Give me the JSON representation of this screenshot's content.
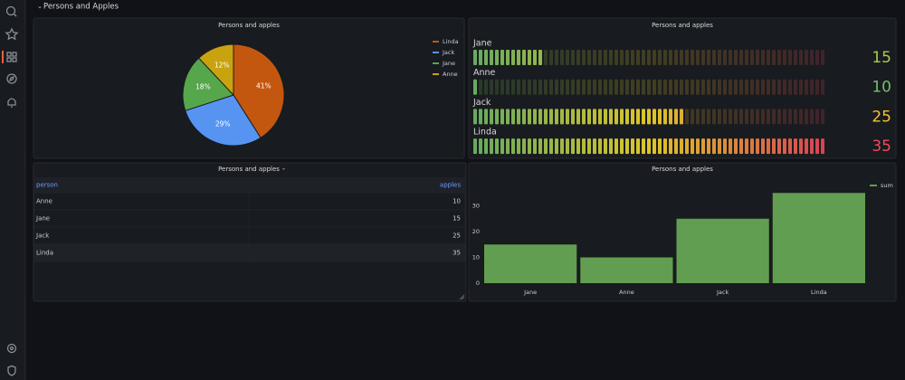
{
  "section": "Persons and Apples",
  "chart_data": [
    {
      "type": "pie",
      "title": "Persons and apples",
      "categories": [
        "Linda",
        "Jack",
        "Jane",
        "Anne"
      ],
      "values": [
        41,
        29,
        18,
        12
      ],
      "value_labels": [
        "41%",
        "29%",
        "18%",
        "12%"
      ],
      "colors": [
        "#c4570f",
        "#5794f2",
        "#56a64b",
        "#c8a30f"
      ],
      "legend": "right"
    },
    {
      "type": "bargauge",
      "title": "Persons and apples",
      "categories": [
        "Jane",
        "Anne",
        "Jack",
        "Linda"
      ],
      "values": [
        15,
        10,
        25,
        35
      ],
      "min": 10,
      "max": 35,
      "colors": [
        "#73bf69",
        "#fade2a",
        "#f2495c"
      ]
    },
    {
      "type": "bar",
      "title": "Persons and apples",
      "categories": [
        "Jane",
        "Anne",
        "Jack",
        "Linda"
      ],
      "series": [
        {
          "name": "sum",
          "color": "#629e51",
          "values": [
            15,
            10,
            25,
            35
          ]
        }
      ],
      "ylim": [
        0,
        40
      ],
      "yticks": [
        0,
        10,
        20,
        30
      ],
      "legend": "top-right"
    }
  ],
  "table": {
    "title": "Persons and apples",
    "columns": [
      "person",
      "apples"
    ],
    "rows": [
      [
        "Anne",
        10
      ],
      [
        "Jane",
        15
      ],
      [
        "Jack",
        25
      ],
      [
        "Linda",
        35
      ]
    ]
  }
}
